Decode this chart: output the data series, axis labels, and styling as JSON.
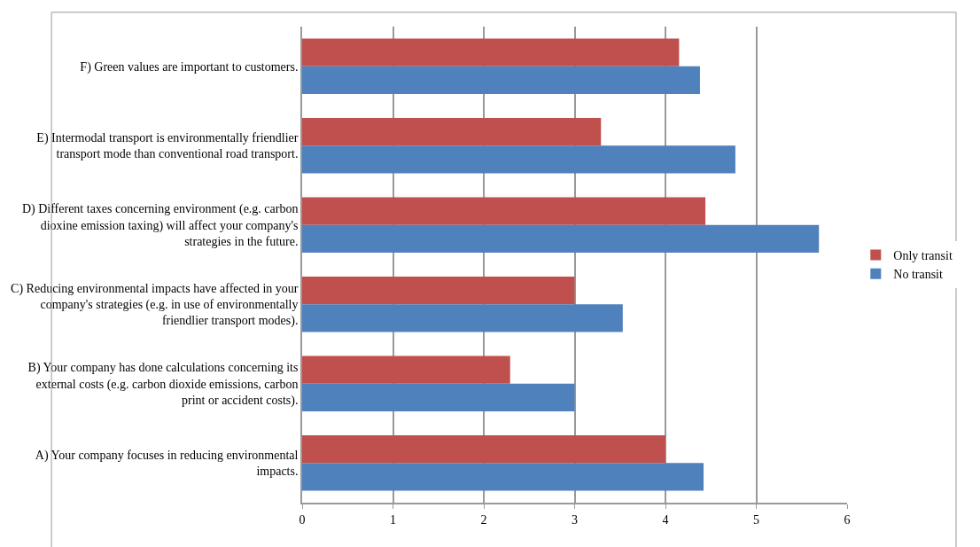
{
  "chart_data": {
    "type": "bar",
    "orientation": "horizontal",
    "categories": [
      "F) Green values are important to customers.",
      "E) Intermodal transport is environmentally friendlier transport mode than conventional road transport.",
      "D) Different taxes concerning environment (e.g. carbon dioxine emission taxing) will affect your company's strategies in the future.",
      "C) Reducing environmental impacts have affected in your company's strategies (e.g. in use of environmentally friendlier transport modes).",
      "B) Your company has done calculations concerning its external costs (e.g. carbon dioxide emissions, carbon print or accident costs).",
      "A) Your company focuses in reducing environmental impacts."
    ],
    "series": [
      {
        "name": "Only transit",
        "color": "#c0504d",
        "values": [
          4.15,
          3.29,
          4.44,
          3.0,
          2.29,
          4.0
        ]
      },
      {
        "name": "No transit",
        "color": "#4f81bd",
        "values": [
          4.38,
          4.77,
          5.69,
          3.53,
          3.0,
          4.42
        ]
      }
    ],
    "xlim": [
      0,
      6
    ],
    "xticks": [
      0,
      1,
      2,
      3,
      4,
      5,
      6
    ],
    "grid": "x",
    "legend": "right"
  }
}
